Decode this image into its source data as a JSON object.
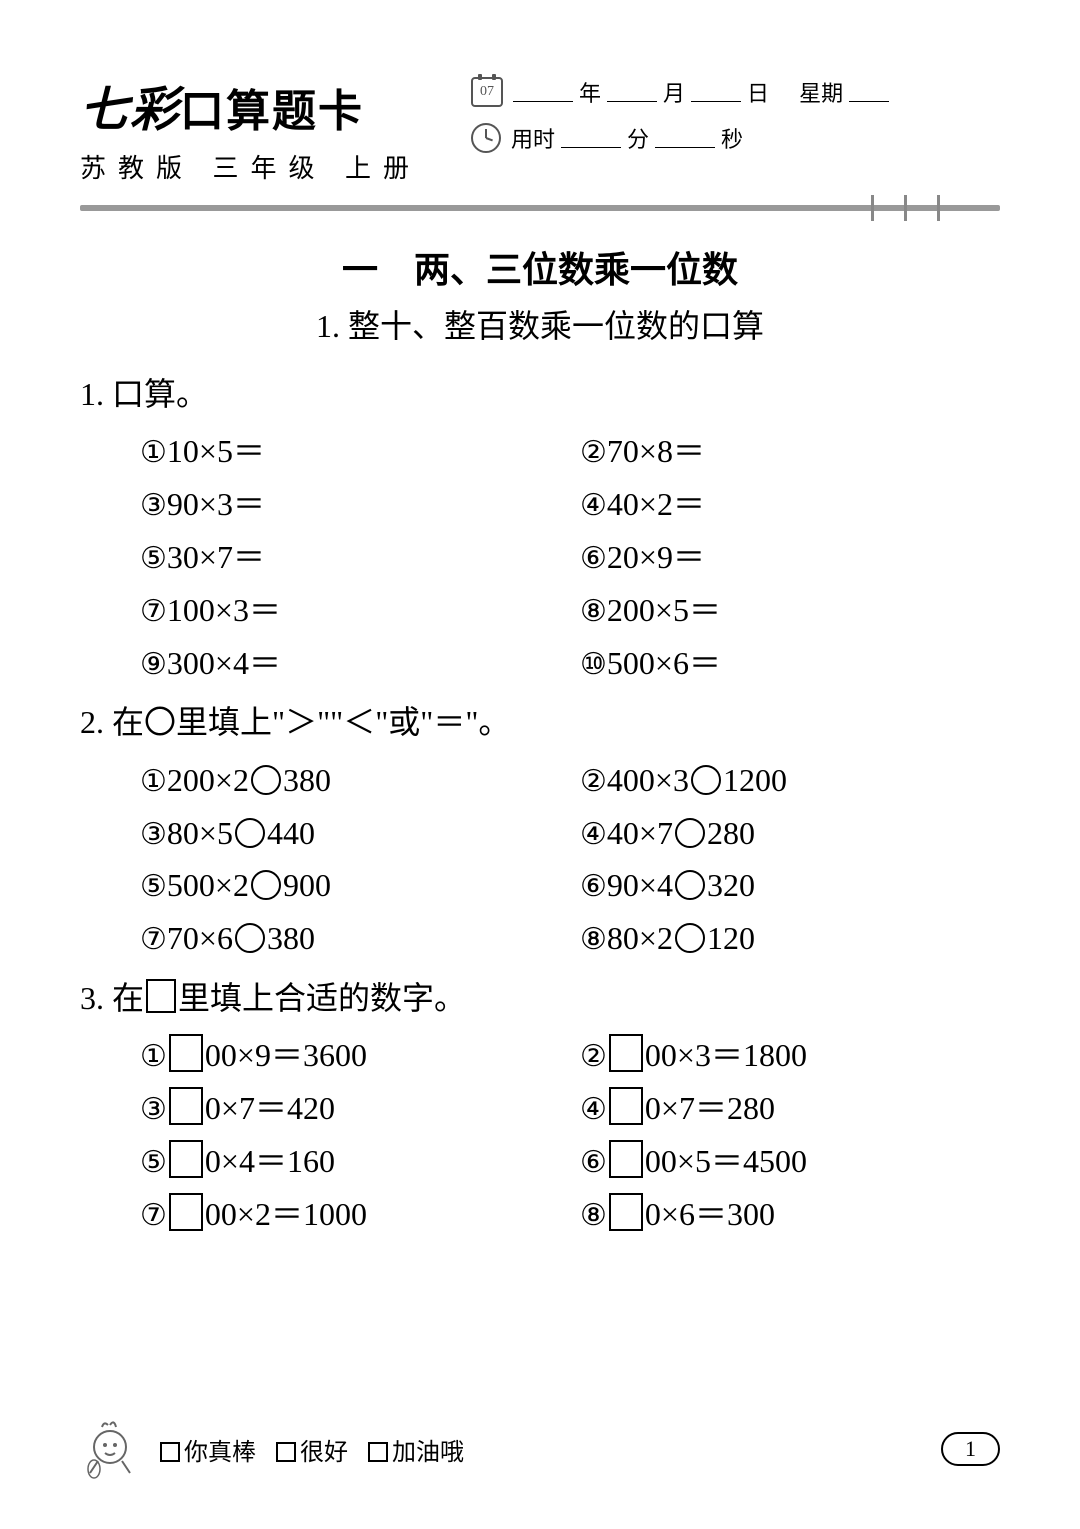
{
  "header": {
    "title_fancy": "七彩",
    "title_rest": "口算题卡",
    "subtitle": "苏教版 三年级 上册",
    "cal_day": "07",
    "year_label": "年",
    "month_label": "月",
    "day_label": "日",
    "weekday_label": "星期",
    "time_label": "用时",
    "min_label": "分",
    "sec_label": "秒"
  },
  "chapter": "一　两、三位数乘一位数",
  "section": "1.  整十、整百数乘一位数的口算",
  "q1": {
    "heading": "1.  口算。",
    "items": [
      {
        "n": "①",
        "t": "10×5＝"
      },
      {
        "n": "②",
        "t": "70×8＝"
      },
      {
        "n": "③",
        "t": "90×3＝"
      },
      {
        "n": "④",
        "t": "40×2＝"
      },
      {
        "n": "⑤",
        "t": "30×7＝"
      },
      {
        "n": "⑥",
        "t": "20×9＝"
      },
      {
        "n": "⑦",
        "t": "100×3＝"
      },
      {
        "n": "⑧",
        "t": "200×5＝"
      },
      {
        "n": "⑨",
        "t": "300×4＝"
      },
      {
        "n": "⑩",
        "t": "500×6＝"
      }
    ]
  },
  "q2": {
    "heading": "2.  在〇里填上\"＞\"\"＜\"或\"＝\"。",
    "items": [
      {
        "n": "①",
        "a": "200×2",
        "b": "380"
      },
      {
        "n": "②",
        "a": "400×3",
        "b": "1200"
      },
      {
        "n": "③",
        "a": "80×5",
        "b": "440"
      },
      {
        "n": "④",
        "a": "40×7",
        "b": "280"
      },
      {
        "n": "⑤",
        "a": "500×2",
        "b": "900"
      },
      {
        "n": "⑥",
        "a": "90×4",
        "b": "320"
      },
      {
        "n": "⑦",
        "a": "70×6",
        "b": "380"
      },
      {
        "n": "⑧",
        "a": "80×2",
        "b": "120"
      }
    ]
  },
  "q3": {
    "heading_a": "3.  在",
    "heading_b": "里填上合适的数字。",
    "items": [
      {
        "n": "①",
        "t": "00×9＝3600"
      },
      {
        "n": "②",
        "t": "00×3＝1800"
      },
      {
        "n": "③",
        "t": "0×7＝420"
      },
      {
        "n": "④",
        "t": "0×7＝280"
      },
      {
        "n": "⑤",
        "t": "0×4＝160"
      },
      {
        "n": "⑥",
        "t": "00×5＝4500"
      },
      {
        "n": "⑦",
        "t": "00×2＝1000"
      },
      {
        "n": "⑧",
        "t": "0×6＝300"
      }
    ]
  },
  "footer": {
    "opt1": "你真棒",
    "opt2": "很好",
    "opt3": "加油哦",
    "page": "1"
  }
}
